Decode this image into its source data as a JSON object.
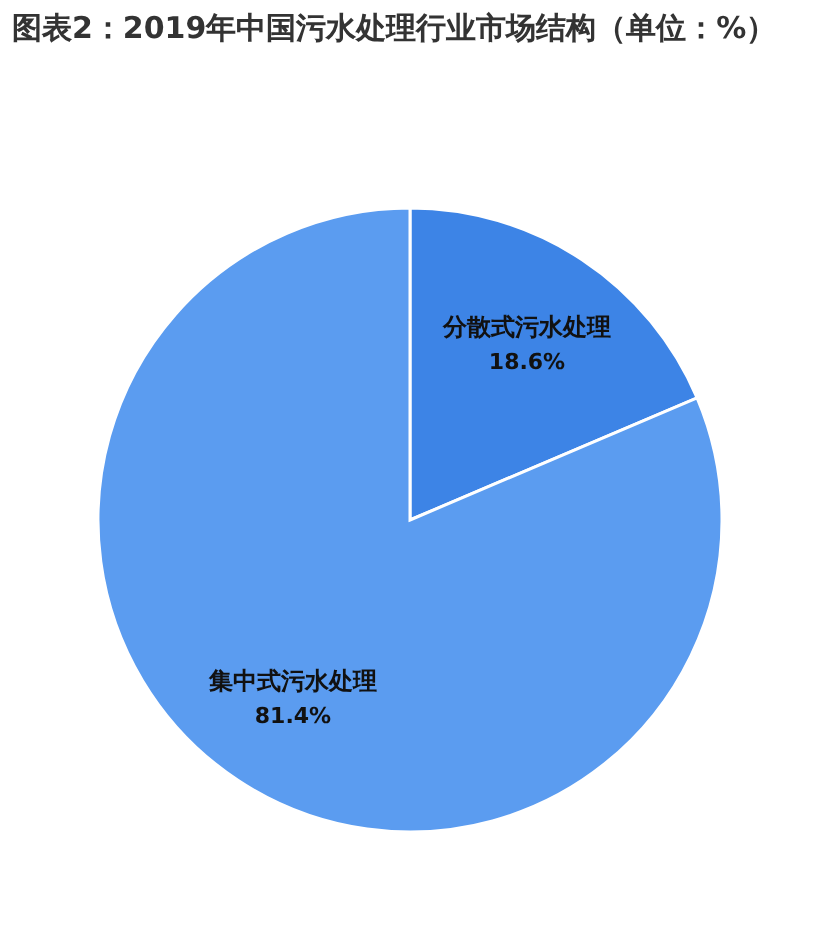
{
  "chart_data": {
    "type": "pie",
    "title": "图表2：2019年中国污水处理行业市场结构（单位：%）",
    "categories": [
      "分散式污水处理",
      "集中式污水处理"
    ],
    "values": [
      18.6,
      81.4
    ],
    "value_labels": [
      "18.6%",
      "81.4%"
    ],
    "colors": [
      "#3d84e6",
      "#5b9cf0"
    ]
  }
}
